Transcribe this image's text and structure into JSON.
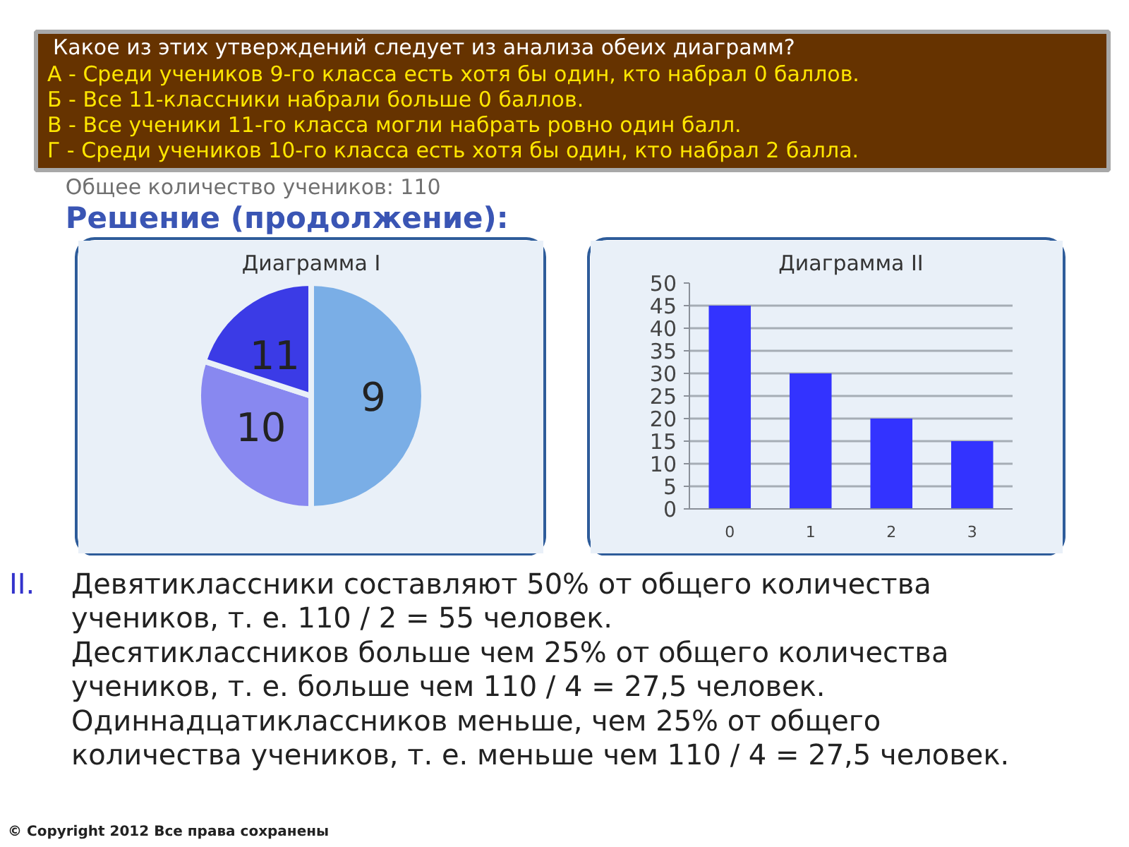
{
  "chart_data": [
    {
      "type": "other",
      "title": "Какое из этих утверждений следует из анализа обеих диаграмм?",
      "annotations": [
        "А - Среди учеников 9-го класса есть хотя бы один, кто набрал 0 баллов.",
        "Б - Все 11-классники набрали больше 0 баллов.",
        "В - Все ученики 11-го класса могли набрать ровно один балл.",
        "Г - Среди учеников 10-го класса есть хотя бы один, кто набрал 2 балла.",
        "Общее количество учеников: 110"
      ],
      "subtitle": "Решение (продолжение):"
    },
    {
      "type": "pie",
      "title": "Диаграмма I",
      "categories": [
        "9",
        "10",
        "11"
      ],
      "values": [
        50,
        30,
        20
      ],
      "colors": [
        "#7aaee6",
        "#8888f0",
        "#3b3be6"
      ]
    },
    {
      "type": "bar",
      "title": "Диаграмма II",
      "categories": [
        "0",
        "1",
        "2",
        "3"
      ],
      "values": [
        45,
        30,
        20,
        15
      ],
      "color": "#3333ff",
      "ylim": [
        0,
        50
      ],
      "yticks": [
        0,
        5,
        10,
        15,
        20,
        25,
        30,
        35,
        40,
        45,
        50
      ],
      "grid": "y"
    },
    {
      "type": "other",
      "annotations": [
        "II.",
        "Девятиклассники составляют 50% от общего количества",
        "учеников, т. е. 110 / 2 = 55 человек.",
        "Десятиклассников больше чем 25% от общего количества",
        "учеников, т. е. больше чем 110 / 4 = 27,5 человек.",
        "Одиннадцатиклассников меньше, чем 25% от общего",
        "количества учеников, т. е. меньше чем 110 / 4 = 27,5 человек.",
        "© Copyright 2012 Все права сохранены"
      ]
    }
  ]
}
